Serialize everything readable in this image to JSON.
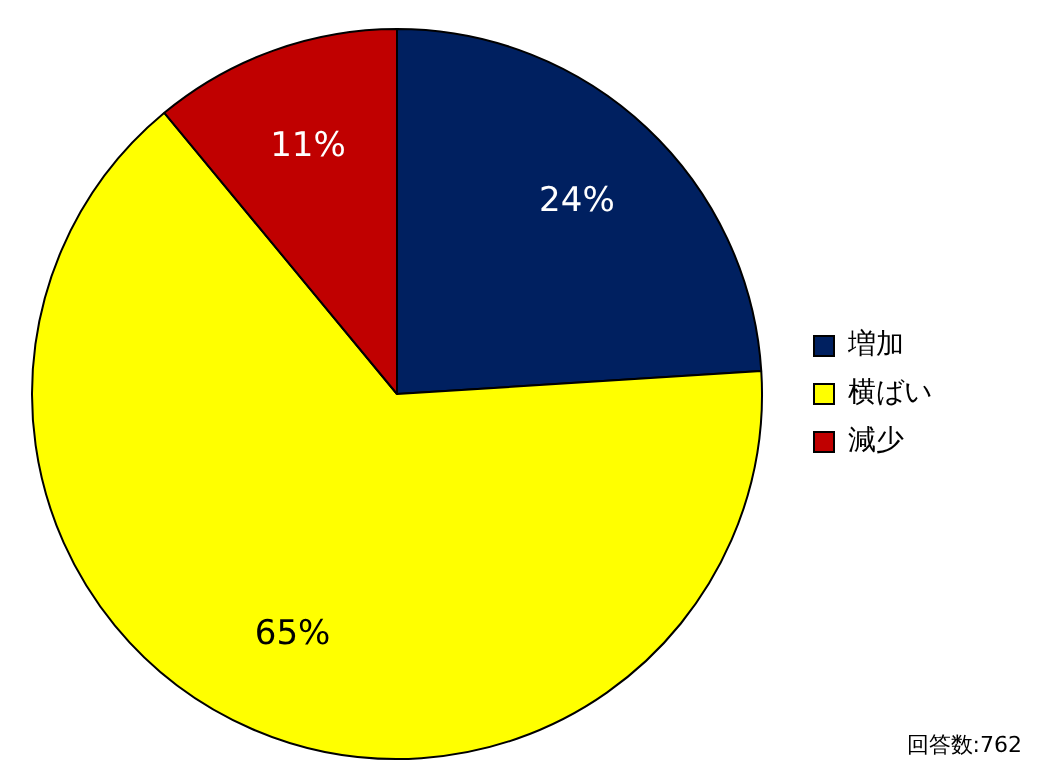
{
  "chart_data": {
    "type": "pie",
    "categories": [
      "増加",
      "横ばい",
      "減少"
    ],
    "values": [
      24,
      65,
      11
    ],
    "colors": [
      "#002060",
      "#ffff00",
      "#c00000"
    ],
    "value_labels": [
      "24%",
      "65%",
      "11%"
    ],
    "legend": "right",
    "annotations": [
      "回答数:762"
    ]
  }
}
